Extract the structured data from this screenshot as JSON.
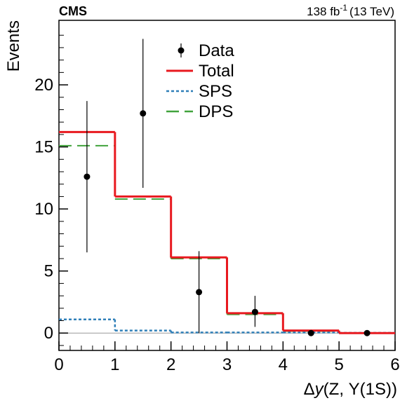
{
  "header": {
    "experiment": "CMS",
    "luminosity": "138 fb",
    "lumi_exponent": "-1",
    "energy": "(13 TeV)"
  },
  "chart_data": {
    "type": "line",
    "xlabel_greek": "Δ",
    "xlabel_var": "y",
    "xlabel_rest": "(Z, Υ(1S))",
    "ylabel": "Events",
    "xlim": [
      0,
      6
    ],
    "ylim": [
      -1.4,
      25.2
    ],
    "x_ticks": [
      "0",
      "1",
      "2",
      "3",
      "4",
      "5",
      "6"
    ],
    "y_ticks": [
      "0",
      "5",
      "10",
      "15",
      "20"
    ],
    "bin_edges": [
      0,
      1,
      2,
      3,
      4,
      5,
      6
    ],
    "legend_position": "top-center",
    "series": [
      {
        "name": "Data",
        "style": "points-with-error-bars",
        "color": "#000000",
        "x": [
          0.5,
          1.5,
          2.5,
          3.5,
          4.5,
          5.5
        ],
        "y": [
          12.6,
          17.7,
          3.3,
          1.7,
          0.0,
          0.0
        ],
        "err_low": [
          6.1,
          6.0,
          3.3,
          1.2,
          0.0,
          0.0
        ],
        "err_high": [
          6.1,
          6.0,
          3.3,
          1.3,
          0.0,
          0.0
        ]
      },
      {
        "name": "Total",
        "style": "solid",
        "color": "#e8191f",
        "values": [
          16.2,
          11.0,
          6.1,
          1.6,
          0.2,
          0.0
        ]
      },
      {
        "name": "SPS",
        "style": "dotted",
        "color": "#2f7fb8",
        "values": [
          1.1,
          0.2,
          0.05,
          0.05,
          0.05,
          0.02
        ]
      },
      {
        "name": "DPS",
        "style": "dashed",
        "color": "#41a33c",
        "values": [
          15.1,
          10.8,
          6.0,
          1.5,
          0.15,
          0.0
        ]
      }
    ]
  }
}
